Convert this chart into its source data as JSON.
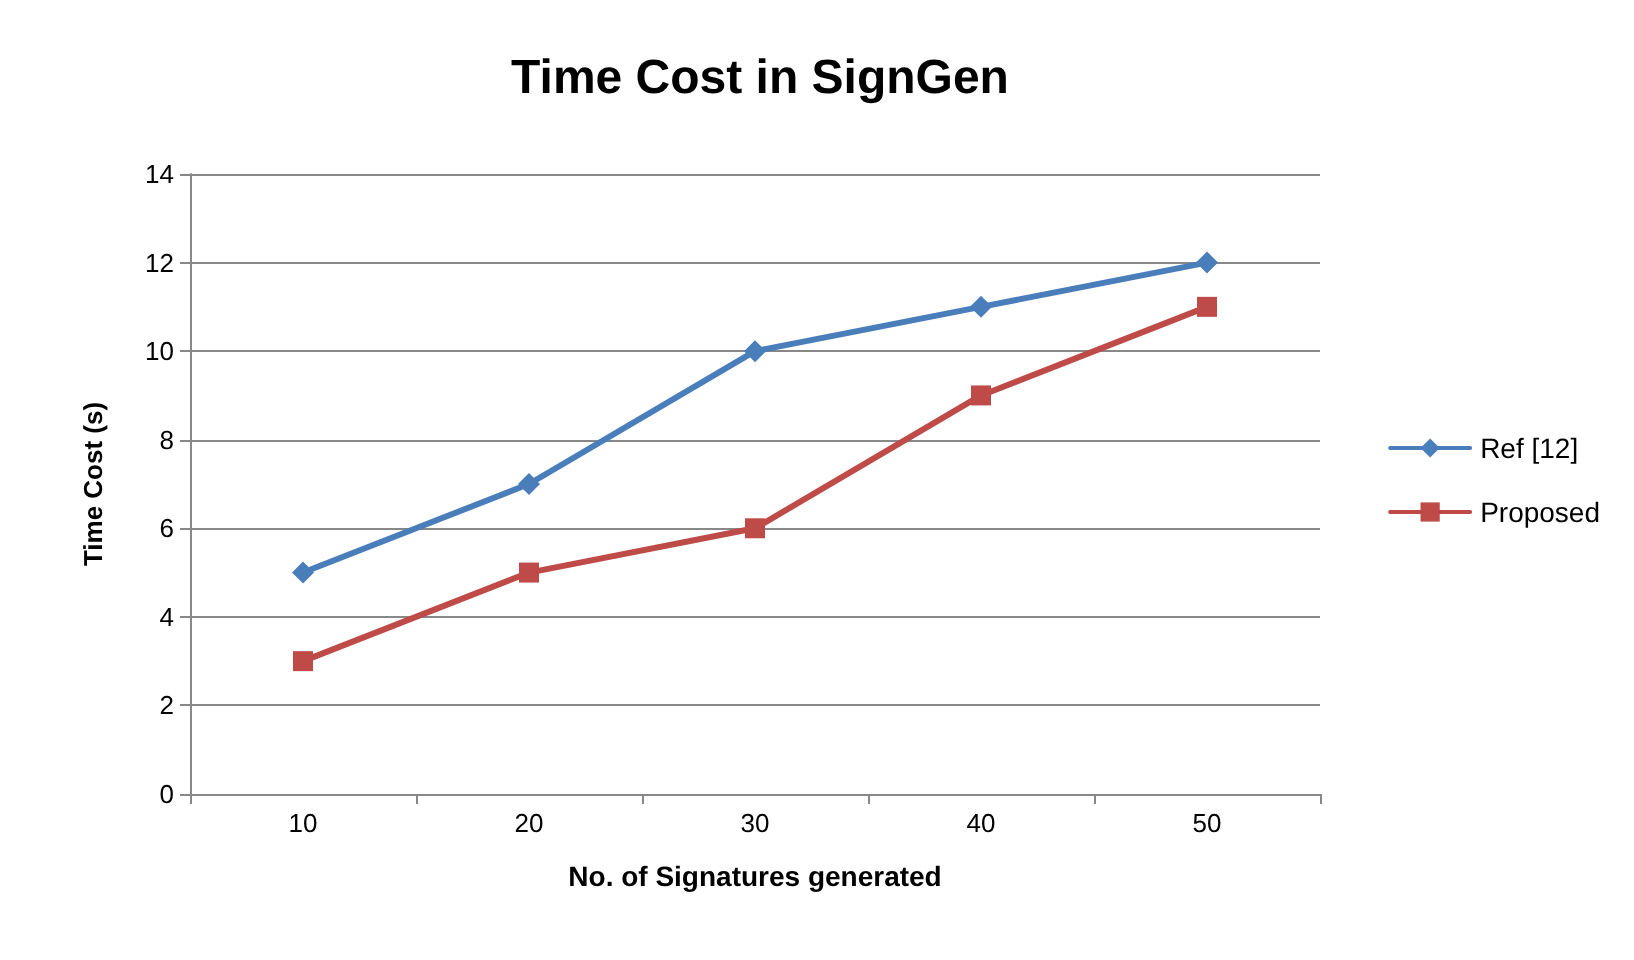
{
  "chart_data": {
    "type": "line",
    "title": "Time Cost in SignGen",
    "xlabel": "No. of Signatures generated",
    "ylabel": "Time Cost (s)",
    "categories": [
      "10",
      "20",
      "30",
      "40",
      "50"
    ],
    "series": [
      {
        "name": "Ref [12]",
        "color": "#4a7ebb",
        "values": [
          5,
          7,
          10,
          11,
          12
        ],
        "marker": "diamond"
      },
      {
        "name": "Proposed",
        "color": "#be4b48",
        "values": [
          3,
          5,
          6,
          9,
          11
        ],
        "marker": "square"
      }
    ],
    "ylim": [
      0,
      14
    ],
    "yticks": [
      0,
      2,
      4,
      6,
      8,
      10,
      12,
      14
    ],
    "grid": "y",
    "legend": "right",
    "line_style": "solid"
  }
}
